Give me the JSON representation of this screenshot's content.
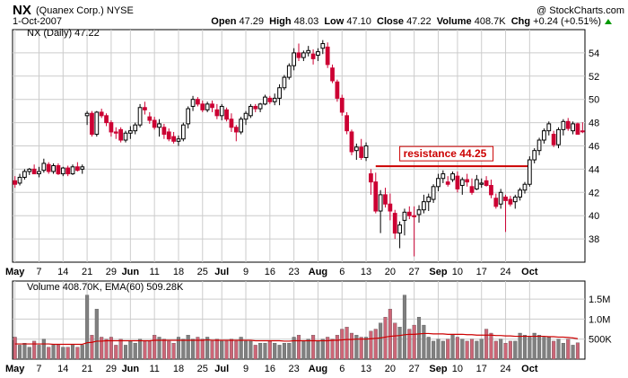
{
  "header": {
    "ticker": "NX",
    "company": "(Quanex Corp.)",
    "exchange": "NYSE",
    "copyright": "@ StockCharts.com",
    "date": "1-Oct-2007",
    "open_label": "Open",
    "open": "47.29",
    "high_label": "High",
    "high": "48.03",
    "low_label": "Low",
    "low": "47.10",
    "close_label": "Close",
    "close": "47.22",
    "volume_label": "Volume",
    "volume": "408.7K",
    "chg_label": "Chg",
    "chg": "+0.24 (+0.51%)"
  },
  "colors": {
    "up": "#000000",
    "down": "#cc0033",
    "resistance": "#cc0000",
    "vol_up": "#808080",
    "vol_down": "#cc6677",
    "ema": "#cc0000",
    "grid": "#cccccc"
  },
  "chart_data": [
    {
      "type": "candlestick",
      "legend": "NX (Daily) 47.22",
      "ylim": [
        36,
        56
      ],
      "yticks": [
        38,
        40,
        42,
        44,
        46,
        48,
        50,
        52,
        54
      ],
      "xtick_labels": [
        "May",
        "7",
        "14",
        "21",
        "29",
        "Jun",
        "11",
        "18",
        "25",
        "Jul",
        "9",
        "16",
        "23",
        "Aug",
        "6",
        "13",
        "20",
        "27",
        "Sep",
        "10",
        "17",
        "24",
        "Oct"
      ],
      "annotation": {
        "text": "resistance 44.25",
        "value": 44.25
      },
      "candles": [
        [
          43.0,
          43.4,
          42.4,
          42.7
        ],
        [
          42.8,
          43.6,
          42.6,
          43.3
        ],
        [
          43.3,
          44.0,
          43.1,
          43.8
        ],
        [
          43.8,
          44.1,
          43.5,
          44.0
        ],
        [
          44.0,
          44.4,
          43.8,
          43.6
        ],
        [
          43.6,
          44.2,
          43.3,
          43.8
        ],
        [
          43.9,
          44.9,
          43.7,
          44.5
        ],
        [
          44.4,
          44.6,
          43.6,
          43.8
        ],
        [
          43.8,
          44.5,
          43.6,
          44.3
        ],
        [
          44.3,
          44.5,
          43.5,
          43.6
        ],
        [
          43.6,
          44.2,
          43.4,
          44.1
        ],
        [
          44.1,
          44.3,
          43.4,
          43.6
        ],
        [
          43.6,
          44.4,
          43.5,
          44.2
        ],
        [
          44.2,
          44.6,
          43.8,
          43.9
        ],
        [
          44.0,
          44.4,
          43.6,
          44.2
        ],
        [
          48.6,
          49.0,
          47.8,
          48.8
        ],
        [
          48.8,
          49.0,
          46.8,
          47.0
        ],
        [
          47.0,
          49.0,
          46.8,
          48.9
        ],
        [
          48.9,
          49.2,
          48.4,
          48.6
        ],
        [
          48.6,
          48.8,
          47.7,
          48.0
        ],
        [
          48.0,
          48.2,
          46.8,
          47.2
        ],
        [
          47.2,
          47.6,
          46.6,
          47.1
        ],
        [
          47.4,
          47.6,
          46.3,
          46.5
        ],
        [
          46.5,
          47.3,
          46.3,
          47.1
        ],
        [
          47.1,
          47.7,
          46.6,
          47.3
        ],
        [
          47.3,
          48.0,
          47.0,
          47.8
        ],
        [
          47.8,
          49.6,
          47.6,
          49.3
        ],
        [
          49.3,
          49.8,
          48.7,
          49.1
        ],
        [
          48.5,
          48.9,
          47.9,
          48.2
        ],
        [
          48.2,
          48.5,
          47.4,
          47.6
        ],
        [
          47.6,
          48.3,
          46.8,
          47.9
        ],
        [
          47.6,
          47.9,
          46.6,
          47.0
        ],
        [
          47.2,
          47.5,
          46.4,
          46.6
        ],
        [
          46.8,
          47.2,
          46.2,
          46.4
        ],
        [
          46.4,
          46.9,
          46.0,
          46.6
        ],
        [
          46.6,
          48.0,
          46.4,
          47.8
        ],
        [
          47.9,
          49.4,
          47.5,
          49.2
        ],
        [
          49.4,
          50.3,
          49.0,
          50.0
        ],
        [
          50.0,
          50.2,
          49.4,
          49.6
        ],
        [
          49.6,
          49.9,
          48.9,
          49.1
        ],
        [
          49.1,
          49.8,
          48.9,
          49.6
        ],
        [
          49.6,
          49.9,
          48.9,
          49.3
        ],
        [
          49.1,
          49.6,
          48.3,
          48.6
        ],
        [
          48.6,
          49.6,
          48.2,
          49.4
        ],
        [
          49.1,
          49.3,
          48.1,
          48.3
        ],
        [
          48.3,
          48.8,
          47.2,
          47.6
        ],
        [
          47.6,
          47.8,
          46.4,
          47.2
        ],
        [
          47.2,
          48.5,
          47.0,
          48.3
        ],
        [
          48.3,
          49.0,
          47.8,
          48.8
        ],
        [
          48.6,
          49.6,
          48.4,
          49.4
        ],
        [
          49.4,
          49.6,
          48.9,
          49.2
        ],
        [
          49.2,
          49.7,
          48.9,
          49.6
        ],
        [
          49.6,
          50.4,
          49.5,
          50.2
        ],
        [
          50.1,
          50.3,
          49.6,
          49.8
        ],
        [
          49.8,
          50.5,
          49.5,
          50.1
        ],
        [
          50.1,
          51.3,
          49.5,
          51.0
        ],
        [
          51.0,
          52.1,
          50.8,
          51.9
        ],
        [
          51.9,
          53.1,
          51.7,
          52.9
        ],
        [
          52.9,
          54.4,
          52.5,
          54.0
        ],
        [
          54.0,
          54.8,
          53.3,
          53.6
        ],
        [
          53.6,
          54.2,
          53.3,
          54.0
        ],
        [
          54.0,
          54.6,
          53.7,
          54.2
        ],
        [
          53.9,
          54.3,
          53.0,
          53.5
        ],
        [
          53.8,
          54.4,
          53.3,
          54.1
        ],
        [
          54.4,
          55.1,
          53.9,
          54.8
        ],
        [
          54.5,
          54.9,
          52.7,
          53.0
        ],
        [
          52.7,
          53.0,
          51.4,
          51.6
        ],
        [
          51.5,
          51.7,
          49.8,
          50.1
        ],
        [
          50.1,
          50.4,
          48.6,
          48.9
        ],
        [
          48.6,
          48.9,
          47.0,
          47.3
        ],
        [
          47.2,
          47.4,
          45.2,
          45.5
        ],
        [
          45.6,
          46.2,
          44.8,
          45.9
        ],
        [
          45.9,
          46.6,
          44.8,
          45.0
        ],
        [
          45.0,
          46.3,
          44.7,
          46.0
        ],
        [
          43.6,
          44.0,
          41.8,
          42.9
        ],
        [
          42.9,
          43.7,
          40.2,
          40.4
        ],
        [
          40.4,
          42.2,
          38.5,
          41.8
        ],
        [
          41.8,
          42.4,
          40.7,
          41.0
        ],
        [
          41.0,
          41.9,
          39.6,
          40.4
        ],
        [
          40.2,
          40.5,
          38.0,
          38.5
        ],
        [
          38.5,
          39.5,
          37.2,
          39.2
        ],
        [
          39.6,
          40.6,
          38.3,
          40.3
        ],
        [
          40.3,
          40.8,
          39.7,
          40.0
        ],
        [
          40.0,
          40.8,
          36.5,
          39.9
        ],
        [
          40.1,
          40.9,
          39.4,
          40.5
        ],
        [
          40.5,
          41.8,
          40.2,
          41.2
        ],
        [
          41.2,
          41.9,
          40.4,
          41.6
        ],
        [
          41.4,
          42.7,
          41.1,
          42.5
        ],
        [
          42.5,
          43.6,
          42.1,
          43.2
        ],
        [
          43.2,
          43.9,
          42.8,
          43.6
        ],
        [
          42.9,
          43.4,
          42.5,
          42.7
        ],
        [
          43.1,
          43.8,
          42.9,
          43.6
        ],
        [
          43.4,
          43.8,
          42.0,
          42.3
        ],
        [
          42.6,
          43.3,
          41.8,
          43.1
        ],
        [
          43.1,
          43.6,
          42.5,
          42.9
        ],
        [
          42.5,
          43.2,
          41.8,
          42.0
        ],
        [
          42.3,
          43.5,
          42.2,
          43.1
        ],
        [
          42.7,
          43.2,
          42.4,
          42.8
        ],
        [
          43.0,
          43.4,
          42.5,
          42.6
        ],
        [
          42.6,
          43.1,
          41.5,
          41.8
        ],
        [
          41.5,
          41.9,
          40.6,
          40.8
        ],
        [
          41.0,
          42.3,
          40.6,
          42.0
        ],
        [
          41.6,
          41.8,
          38.6,
          41.3
        ],
        [
          41.4,
          41.7,
          40.8,
          41.0
        ],
        [
          41.2,
          41.8,
          40.6,
          41.6
        ],
        [
          41.6,
          42.4,
          41.3,
          42.2
        ],
        [
          42.2,
          42.9,
          41.9,
          42.7
        ],
        [
          42.7,
          45.1,
          42.5,
          44.8
        ],
        [
          44.8,
          45.8,
          44.5,
          45.6
        ],
        [
          45.6,
          46.7,
          45.2,
          46.5
        ],
        [
          46.5,
          47.5,
          46.2,
          47.3
        ],
        [
          47.3,
          48.1,
          46.9,
          47.9
        ],
        [
          47.0,
          47.3,
          45.9,
          46.1
        ],
        [
          46.1,
          47.6,
          45.8,
          47.4
        ],
        [
          47.4,
          48.3,
          46.9,
          48.1
        ],
        [
          48.1,
          48.4,
          47.3,
          47.5
        ],
        [
          47.3,
          48.1,
          47.0,
          47.9
        ],
        [
          47.9,
          48.0,
          47.0,
          47.0
        ],
        [
          47.29,
          48.03,
          47.1,
          47.22
        ]
      ]
    },
    {
      "type": "bar",
      "legend": "Volume 408.70K, EMA(60) 509.28K",
      "ylim": [
        0,
        1.95
      ],
      "ytick_labels": [
        "500K",
        "1.0M",
        "1.5M"
      ],
      "yticks": [
        0.5,
        1.0,
        1.5
      ],
      "volumes_millions": [
        0.55,
        0.35,
        0.4,
        0.3,
        0.45,
        0.35,
        0.5,
        0.3,
        0.35,
        0.35,
        0.3,
        0.3,
        0.35,
        0.3,
        0.35,
        1.6,
        0.6,
        1.25,
        0.55,
        0.5,
        0.55,
        0.35,
        0.5,
        0.35,
        0.45,
        0.4,
        0.5,
        0.45,
        0.45,
        0.6,
        0.55,
        0.5,
        0.45,
        0.4,
        0.55,
        0.5,
        0.6,
        0.5,
        0.55,
        0.5,
        0.55,
        0.45,
        0.5,
        0.45,
        0.45,
        0.5,
        0.45,
        0.55,
        0.45,
        0.45,
        0.35,
        0.4,
        0.4,
        0.45,
        0.4,
        0.35,
        0.4,
        0.4,
        0.55,
        0.6,
        0.45,
        0.5,
        0.6,
        0.45,
        0.5,
        0.55,
        0.5,
        0.6,
        0.75,
        0.8,
        0.65,
        0.6,
        0.55,
        0.55,
        0.7,
        0.75,
        0.9,
        1.05,
        1.25,
        0.9,
        0.8,
        1.6,
        0.75,
        0.85,
        1.05,
        0.85,
        0.55,
        0.45,
        0.5,
        0.45,
        0.5,
        0.6,
        0.55,
        0.5,
        0.45,
        0.5,
        0.45,
        0.5,
        0.75,
        0.65,
        0.45,
        0.5,
        0.4,
        0.45,
        0.45,
        0.65,
        0.6,
        0.55,
        0.65,
        0.6,
        0.55,
        0.55,
        0.45,
        0.5,
        0.4,
        0.5,
        0.35,
        0.41
      ],
      "ema_millions": [
        0.38,
        0.38,
        0.38,
        0.38,
        0.38,
        0.38,
        0.38,
        0.38,
        0.37,
        0.37,
        0.37,
        0.37,
        0.37,
        0.37,
        0.37,
        0.41,
        0.42,
        0.45,
        0.45,
        0.46,
        0.46,
        0.46,
        0.46,
        0.46,
        0.46,
        0.46,
        0.46,
        0.46,
        0.46,
        0.47,
        0.47,
        0.47,
        0.47,
        0.47,
        0.47,
        0.47,
        0.47,
        0.47,
        0.47,
        0.47,
        0.48,
        0.47,
        0.47,
        0.47,
        0.47,
        0.47,
        0.47,
        0.47,
        0.47,
        0.47,
        0.46,
        0.46,
        0.46,
        0.46,
        0.46,
        0.46,
        0.45,
        0.45,
        0.46,
        0.46,
        0.46,
        0.46,
        0.46,
        0.46,
        0.46,
        0.46,
        0.47,
        0.47,
        0.48,
        0.49,
        0.49,
        0.5,
        0.5,
        0.5,
        0.51,
        0.52,
        0.53,
        0.55,
        0.57,
        0.58,
        0.59,
        0.61,
        0.62,
        0.62,
        0.63,
        0.64,
        0.64,
        0.63,
        0.63,
        0.63,
        0.62,
        0.62,
        0.62,
        0.62,
        0.61,
        0.61,
        0.6,
        0.6,
        0.6,
        0.6,
        0.59,
        0.59,
        0.58,
        0.58,
        0.57,
        0.57,
        0.57,
        0.57,
        0.57,
        0.57,
        0.57,
        0.56,
        0.56,
        0.55,
        0.55,
        0.54,
        0.53,
        0.51
      ]
    }
  ]
}
